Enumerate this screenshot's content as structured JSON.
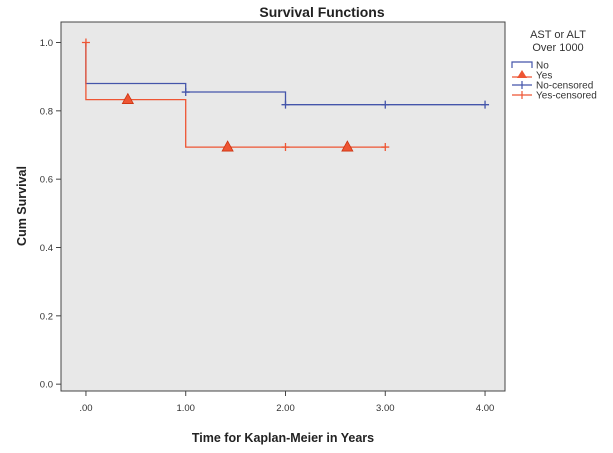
{
  "chart_data": {
    "type": "line",
    "subtype": "kaplan-meier step",
    "title": "Survival Functions",
    "xlabel": "Time for Kaplan-Meier in Years",
    "ylabel": "Cum Survival",
    "xlim": [
      -0.25,
      4.2
    ],
    "ylim": [
      -0.02,
      1.06
    ],
    "xticks": [
      {
        "value": 0,
        "label": ".00"
      },
      {
        "value": 1,
        "label": "1.00"
      },
      {
        "value": 2,
        "label": "2.00"
      },
      {
        "value": 3,
        "label": "3.00"
      },
      {
        "value": 4,
        "label": "4.00"
      }
    ],
    "yticks": [
      {
        "value": 0,
        "label": "0.0"
      },
      {
        "value": 0.2,
        "label": "0.2"
      },
      {
        "value": 0.4,
        "label": "0.4"
      },
      {
        "value": 0.6,
        "label": "0.6"
      },
      {
        "value": 0.8,
        "label": "0.8"
      },
      {
        "value": 1.0,
        "label": "1.0"
      }
    ],
    "grid": false,
    "plot_background": "#e8e8e8",
    "legend": {
      "title_lines": [
        "AST or ALT",
        "Over 1000"
      ],
      "placement": "right",
      "entries": [
        "No",
        "Yes",
        "No-censored",
        "Yes-censored"
      ]
    },
    "series": [
      {
        "name": "No",
        "color": "#4455aa",
        "steps": [
          [
            0,
            1.0
          ],
          [
            0,
            0.88
          ],
          [
            1,
            0.88
          ],
          [
            1,
            0.855
          ],
          [
            2,
            0.855
          ],
          [
            2,
            0.818
          ],
          [
            4,
            0.818
          ]
        ],
        "censored": [
          [
            1,
            0.855
          ],
          [
            2,
            0.818
          ],
          [
            3,
            0.818
          ],
          [
            4,
            0.818
          ]
        ]
      },
      {
        "name": "Yes",
        "color": "#ee5533",
        "steps": [
          [
            0,
            1.0
          ],
          [
            0,
            0.833
          ],
          [
            1,
            0.833
          ],
          [
            1,
            0.694
          ],
          [
            3,
            0.694
          ]
        ],
        "censored": [
          [
            0,
            1.0
          ],
          [
            0.42,
            0.833
          ],
          [
            1.42,
            0.694
          ],
          [
            2.0,
            0.694
          ],
          [
            2.62,
            0.694
          ],
          [
            3,
            0.694
          ]
        ],
        "triangles": [
          [
            0.42,
            0.833
          ],
          [
            1.42,
            0.694
          ],
          [
            2.62,
            0.694
          ]
        ]
      }
    ]
  }
}
